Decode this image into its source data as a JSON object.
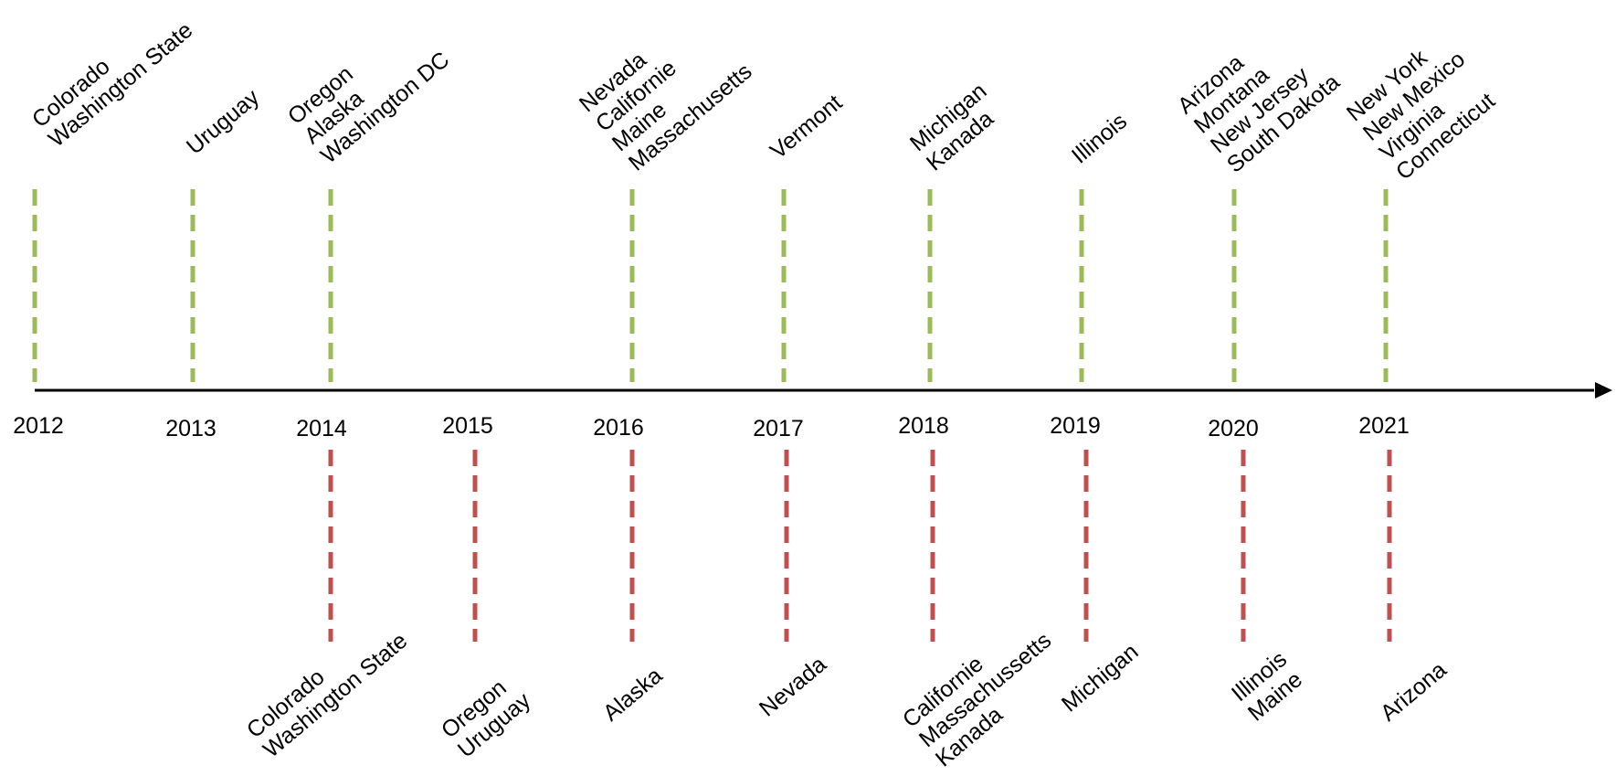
{
  "colors": {
    "legalized_line": "#9bbb59",
    "effective_line": "#c0504d",
    "axis": "#000000",
    "text": "#000000"
  },
  "timeline": {
    "years": [
      "2012",
      "2013",
      "2014",
      "2015",
      "2016",
      "2017",
      "2018",
      "2019",
      "2020",
      "2021"
    ],
    "above": [
      {
        "year": "2012",
        "lines": [
          "Colorado",
          "Washington State"
        ]
      },
      {
        "year": "2013",
        "lines": [
          "Uruguay"
        ]
      },
      {
        "year": "2014",
        "lines": [
          "Oregon",
          "Alaska",
          "Washington DC"
        ]
      },
      {
        "year": "2016",
        "lines": [
          "Nevada",
          "Californie",
          "Maine",
          "Massachusetts"
        ]
      },
      {
        "year": "2017",
        "lines": [
          "Vermont"
        ]
      },
      {
        "year": "2018",
        "lines": [
          "Michigan",
          "Kanada"
        ]
      },
      {
        "year": "2019",
        "lines": [
          "Illinois"
        ]
      },
      {
        "year": "2020",
        "lines": [
          "Arizona",
          "Montana",
          "New Jersey",
          "South Dakota"
        ]
      },
      {
        "year": "2021",
        "lines": [
          "New York",
          "New Mexico",
          "Virginia",
          "Connecticut"
        ]
      }
    ],
    "below": [
      {
        "year": "2014",
        "lines": [
          "Colorado",
          "Washington State"
        ]
      },
      {
        "year": "2015",
        "lines": [
          "Oregon",
          "Uruguay"
        ]
      },
      {
        "year": "2016",
        "lines": [
          "Alaska"
        ]
      },
      {
        "year": "2017",
        "lines": [
          "Nevada"
        ]
      },
      {
        "year": "2018",
        "lines": [
          "Californie",
          "Massachussetts",
          "Kanada"
        ]
      },
      {
        "year": "2019",
        "lines": [
          "Michigan"
        ]
      },
      {
        "year": "2020",
        "lines": [
          "Illinois",
          "Maine"
        ]
      },
      {
        "year": "2021",
        "lines": [
          "Arizona"
        ]
      }
    ]
  }
}
